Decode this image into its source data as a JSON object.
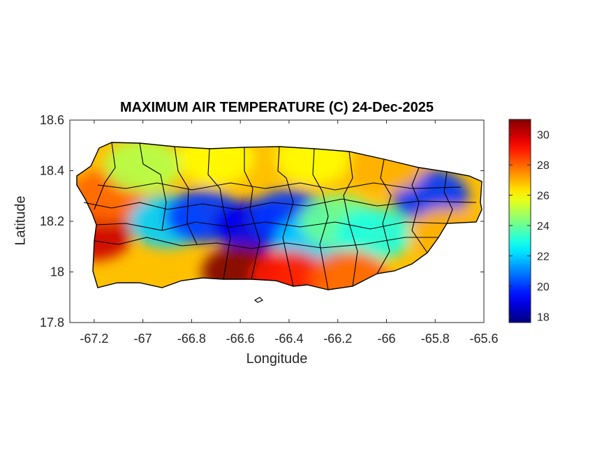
{
  "chart_data": {
    "type": "heatmap",
    "title": "MAXIMUM AIR TEMPERATURE (C) 24-Dec-2025",
    "xlabel": "Longitude",
    "ylabel": "Latitude",
    "xlim": [
      -67.3,
      -65.6
    ],
    "ylim": [
      17.8,
      18.6
    ],
    "xticks": [
      "-67.2",
      "-67",
      "-66.8",
      "-66.6",
      "-66.4",
      "-66.2",
      "-66",
      "-65.8",
      "-65.6"
    ],
    "yticks": [
      "17.8",
      "18",
      "18.2",
      "18.4",
      "18.6"
    ],
    "colorbar": {
      "colormap": "jet",
      "range": [
        17.6,
        31
      ],
      "ticks": [
        "18",
        "20",
        "22",
        "24",
        "26",
        "28",
        "30"
      ]
    },
    "field_points": [
      {
        "lon": -67.2,
        "lat": 18.15,
        "value": 30
      },
      {
        "lon": -67.15,
        "lat": 18.3,
        "value": 28
      },
      {
        "lon": -67.0,
        "lat": 18.42,
        "value": 25
      },
      {
        "lon": -66.9,
        "lat": 18.2,
        "value": 22
      },
      {
        "lon": -66.75,
        "lat": 18.22,
        "value": 20
      },
      {
        "lon": -66.55,
        "lat": 18.18,
        "value": 19
      },
      {
        "lon": -66.4,
        "lat": 18.22,
        "value": 20
      },
      {
        "lon": -66.3,
        "lat": 18.12,
        "value": 22
      },
      {
        "lon": -66.2,
        "lat": 18.2,
        "value": 24
      },
      {
        "lon": -66.05,
        "lat": 18.15,
        "value": 23
      },
      {
        "lon": -65.82,
        "lat": 18.3,
        "value": 20
      },
      {
        "lon": -65.75,
        "lat": 18.15,
        "value": 27
      },
      {
        "lon": -66.6,
        "lat": 18.0,
        "value": 31
      },
      {
        "lon": -66.4,
        "lat": 17.98,
        "value": 29
      },
      {
        "lon": -66.15,
        "lat": 17.98,
        "value": 28
      },
      {
        "lon": -66.7,
        "lat": 18.45,
        "value": 26
      },
      {
        "lon": -66.3,
        "lat": 18.45,
        "value": 26
      },
      {
        "lon": -66.0,
        "lat": 18.42,
        "value": 27
      }
    ]
  },
  "colors": {
    "axis": "#262626",
    "boundary": "#000000",
    "sea": "#ffffff"
  }
}
